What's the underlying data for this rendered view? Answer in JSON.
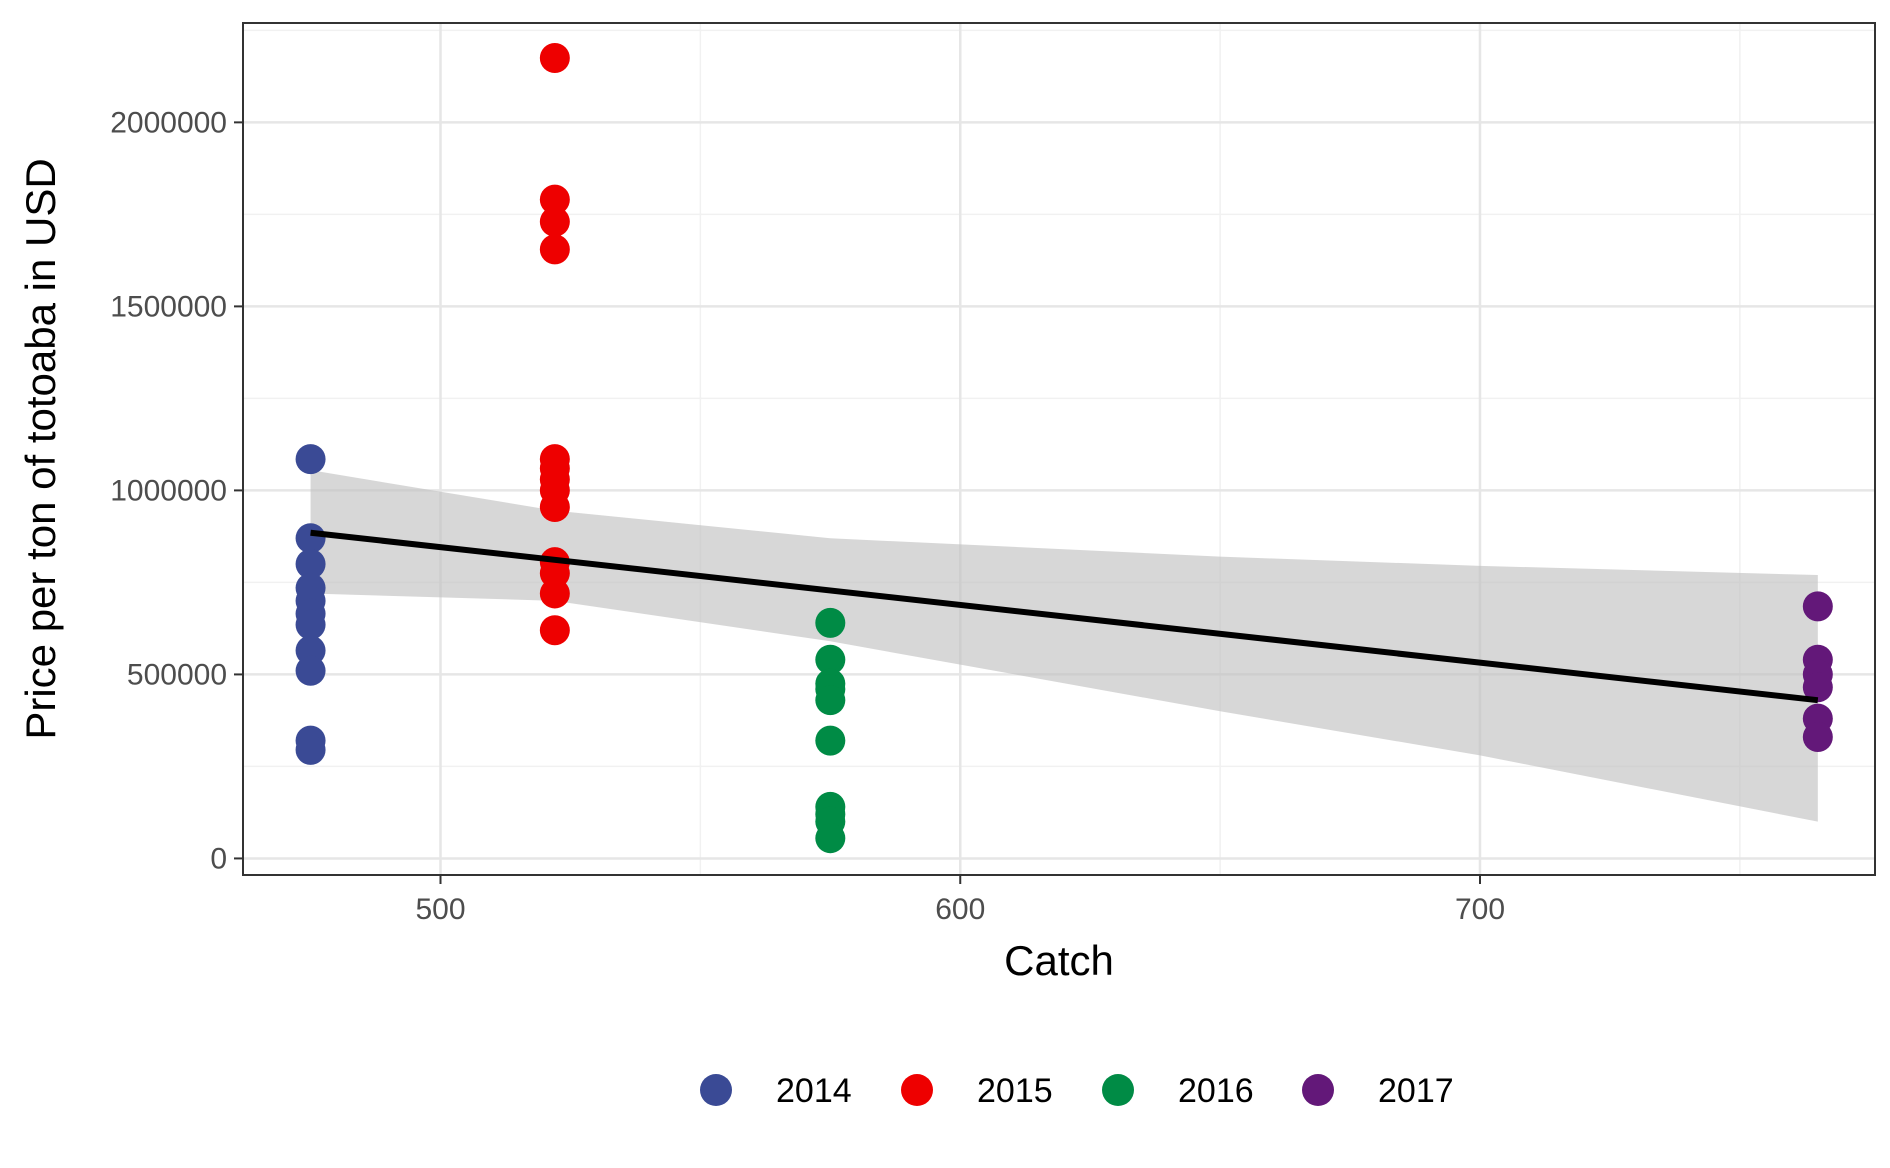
{
  "chart_data": {
    "type": "scatter",
    "title": "",
    "xlabel": "Catch",
    "ylabel": "Price per ton of totoaba in USD",
    "xlim": [
      462,
      776
    ],
    "ylim": [
      -45000,
      2270000
    ],
    "x_ticks": [
      500,
      600,
      700
    ],
    "y_ticks": [
      0,
      500000,
      1000000,
      1500000,
      2000000
    ],
    "x_tick_labels": [
      "500",
      "600",
      "700"
    ],
    "y_tick_labels": [
      "0",
      "500000",
      "1000000",
      "1500000",
      "2000000"
    ],
    "grid": true,
    "legend_position": "bottom",
    "series": [
      {
        "name": "2014",
        "color": "#3A4A95",
        "points": [
          [
            475,
            1085000
          ],
          [
            475,
            870000
          ],
          [
            475,
            800000
          ],
          [
            475,
            735000
          ],
          [
            475,
            700000
          ],
          [
            475,
            665000
          ],
          [
            475,
            635000
          ],
          [
            475,
            565000
          ],
          [
            475,
            510000
          ],
          [
            475,
            320000
          ],
          [
            475,
            295000
          ]
        ]
      },
      {
        "name": "2015",
        "color": "#EE0000",
        "points": [
          [
            522,
            2175000
          ],
          [
            522,
            1790000
          ],
          [
            522,
            1730000
          ],
          [
            522,
            1655000
          ],
          [
            522,
            1085000
          ],
          [
            522,
            1060000
          ],
          [
            522,
            1030000
          ],
          [
            522,
            1000000
          ],
          [
            522,
            955000
          ],
          [
            522,
            805000
          ],
          [
            522,
            775000
          ],
          [
            522,
            720000
          ],
          [
            522,
            620000
          ]
        ]
      },
      {
        "name": "2016",
        "color": "#008B45",
        "points": [
          [
            575,
            640000
          ],
          [
            575,
            540000
          ],
          [
            575,
            475000
          ],
          [
            575,
            460000
          ],
          [
            575,
            430000
          ],
          [
            575,
            320000
          ],
          [
            575,
            140000
          ],
          [
            575,
            120000
          ],
          [
            575,
            100000
          ],
          [
            575,
            55000
          ]
        ]
      },
      {
        "name": "2017",
        "color": "#631879",
        "points": [
          [
            765,
            685000
          ],
          [
            765,
            540000
          ],
          [
            765,
            500000
          ],
          [
            765,
            465000
          ],
          [
            765,
            380000
          ],
          [
            765,
            330000
          ]
        ]
      }
    ],
    "trend_line": {
      "color": "#000000",
      "start": [
        475,
        885000
      ],
      "end": [
        765,
        430000
      ]
    },
    "confidence_band": {
      "color": "#bebebe",
      "x": [
        475,
        522,
        575,
        650,
        700,
        765
      ],
      "upper": [
        1055000,
        945000,
        870000,
        820000,
        795000,
        770000
      ],
      "lower": [
        720000,
        700000,
        590000,
        400000,
        280000,
        100000
      ]
    }
  }
}
